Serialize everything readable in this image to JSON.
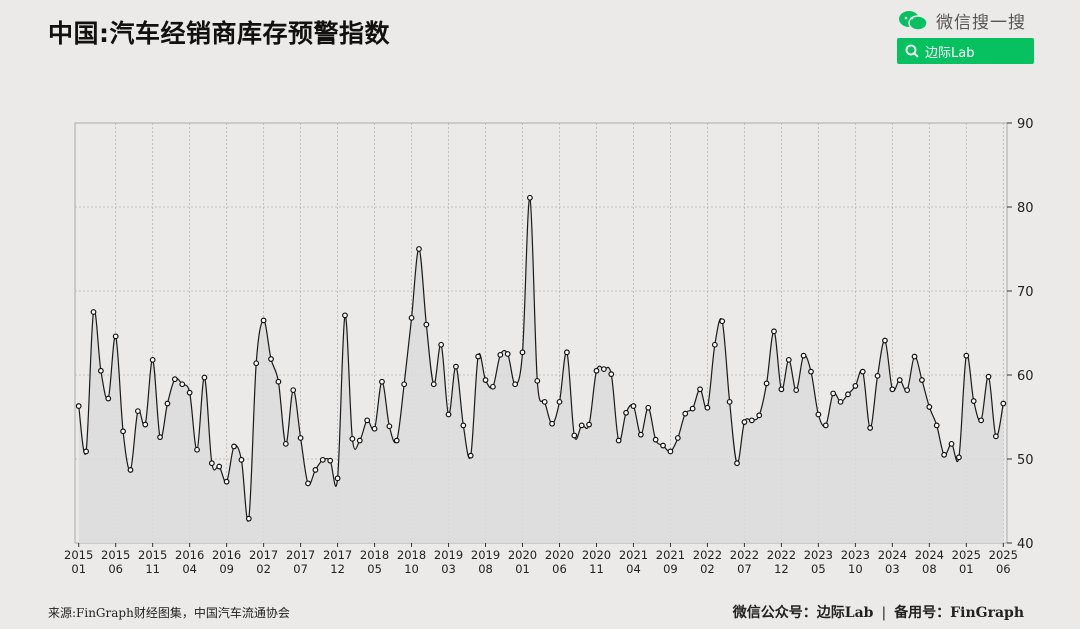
{
  "title": "中国:汽车经销商库存预警指数",
  "brand": {
    "text": "微信搜一搜",
    "search_label": "边际Lab",
    "accent": "#07c160"
  },
  "footer": {
    "source": "来源:FinGraph财经图集，中国汽车流通协会",
    "account": "微信公众号：边际Lab",
    "separator": "|",
    "record": "备用号：FinGraph"
  },
  "chart_data": {
    "type": "area",
    "title": "中国:汽车经销商库存预警指数",
    "xlabel": "",
    "ylabel": "",
    "ylim": [
      40,
      90
    ],
    "yticks": [
      40,
      50,
      60,
      70,
      80,
      90
    ],
    "y_axis_position": "right",
    "grid": true,
    "start": "2015-01",
    "x_tick_labels": [
      [
        "2015",
        "01"
      ],
      [
        "2015",
        "06"
      ],
      [
        "2015",
        "11"
      ],
      [
        "2016",
        "04"
      ],
      [
        "2016",
        "09"
      ],
      [
        "2017",
        "02"
      ],
      [
        "2017",
        "07"
      ],
      [
        "2017",
        "12"
      ],
      [
        "2018",
        "05"
      ],
      [
        "2018",
        "10"
      ],
      [
        "2019",
        "03"
      ],
      [
        "2019",
        "08"
      ],
      [
        "2020",
        "01"
      ],
      [
        "2020",
        "06"
      ],
      [
        "2020",
        "11"
      ],
      [
        "2021",
        "04"
      ],
      [
        "2021",
        "09"
      ],
      [
        "2022",
        "02"
      ],
      [
        "2022",
        "07"
      ],
      [
        "2022",
        "12"
      ],
      [
        "2023",
        "05"
      ],
      [
        "2023",
        "10"
      ],
      [
        "2024",
        "03"
      ],
      [
        "2024",
        "08"
      ],
      [
        "2025",
        "01"
      ],
      [
        "2025",
        "06"
      ]
    ],
    "values": [
      56.3,
      50.9,
      67.5,
      60.5,
      57.2,
      64.6,
      53.3,
      48.7,
      55.7,
      54.1,
      61.8,
      52.6,
      56.6,
      59.5,
      58.9,
      57.9,
      51.1,
      59.7,
      49.5,
      49.1,
      47.3,
      51.5,
      49.9,
      42.9,
      61.4,
      66.5,
      61.9,
      59.2,
      51.8,
      58.2,
      52.5,
      47.1,
      48.7,
      49.9,
      49.8,
      47.7,
      67.1,
      52.4,
      52.2,
      54.6,
      53.6,
      59.2,
      53.9,
      52.2,
      58.9,
      66.8,
      75.0,
      66.0,
      58.9,
      63.6,
      55.3,
      61.0,
      54.0,
      50.4,
      62.2,
      59.4,
      58.6,
      62.4,
      62.5,
      58.9,
      62.7,
      81.1,
      59.3,
      56.8,
      54.2,
      56.8,
      62.7,
      52.8,
      54.0,
      54.1,
      60.5,
      60.7,
      60.1,
      52.2,
      55.5,
      56.3,
      52.9,
      56.1,
      52.3,
      51.6,
      50.9,
      52.5,
      55.4,
      56.0,
      58.3,
      56.1,
      63.6,
      66.4,
      56.8,
      49.5,
      54.4,
      54.6,
      55.2,
      59.0,
      65.2,
      58.3,
      61.8,
      58.2,
      62.3,
      60.4,
      55.3,
      54.0,
      57.8,
      56.8,
      57.7,
      58.7,
      60.4,
      53.7,
      59.9,
      64.1,
      58.3,
      59.4,
      58.2,
      62.2,
      59.4,
      56.2,
      54.0,
      50.5,
      51.8,
      50.2,
      62.3,
      56.9,
      54.6,
      59.8,
      52.7,
      56.6
    ],
    "colors": {
      "line": "#1a1a1a",
      "fill": "#dcdcdc",
      "grid": "#b5b5b5"
    }
  }
}
